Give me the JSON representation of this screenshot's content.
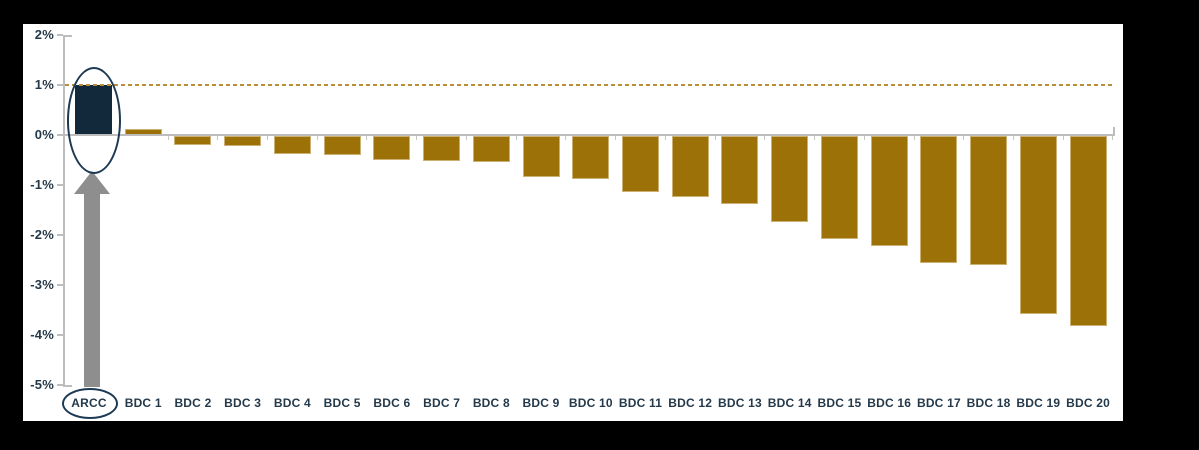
{
  "chart_data": {
    "type": "bar",
    "categories": [
      "ARCC",
      "BDC 1",
      "BDC 2",
      "BDC 3",
      "BDC 4",
      "BDC 5",
      "BDC 6",
      "BDC 7",
      "BDC 8",
      "BDC 9",
      "BDC 10",
      "BDC 11",
      "BDC 12",
      "BDC 13",
      "BDC 14",
      "BDC 15",
      "BDC 16",
      "BDC 17",
      "BDC 18",
      "BDC 19",
      "BDC 20"
    ],
    "values": [
      1.0,
      0.13,
      -0.17,
      -0.2,
      -0.35,
      -0.38,
      -0.47,
      -0.5,
      -0.52,
      -0.82,
      -0.85,
      -1.12,
      -1.22,
      -1.35,
      -1.72,
      -2.05,
      -2.2,
      -2.53,
      -2.57,
      -3.55,
      -3.79
    ],
    "unit": "%",
    "title": "",
    "xlabel": "",
    "ylabel": "",
    "ylim": [
      -5,
      2
    ],
    "ytick_labels": [
      "2%",
      "1%",
      "0%",
      "-1%",
      "-2%",
      "-3%",
      "-4%",
      "-5%"
    ],
    "ytick_values": [
      2,
      1,
      0,
      -1,
      -2,
      -3,
      -4,
      -5
    ],
    "grid": false,
    "legend": "none",
    "reference_line": {
      "value": 1,
      "label": "1%",
      "style": "dashed"
    },
    "highlight_category": "ARCC",
    "annotations": {
      "bar_ellipse": "ellipse around ARCC bar",
      "label_ellipse": "ellipse around ARCC axis label",
      "arrow": "gray up arrow pointing from ARCC label to ARCC bar"
    },
    "colors": {
      "highlight_bar": "#12293b",
      "default_bar": "#9c7107",
      "bar_edge": "#cdb172",
      "reference_line": "#bb8d3b",
      "axis": "#bdbdbd",
      "label": "#24394a",
      "arrow": "#8e8e8e",
      "ellipse": "#1c3a55",
      "frame": "#000000",
      "panel": "#ffffff"
    }
  }
}
